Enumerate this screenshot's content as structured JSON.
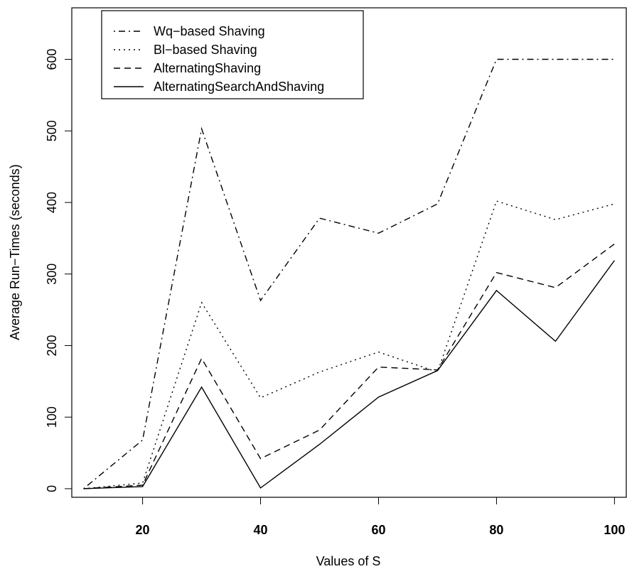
{
  "chart_data": {
    "type": "line",
    "title": "",
    "xlabel": "Values of S",
    "ylabel": "Average Run−Times (seconds)",
    "xlim": [
      8,
      102
    ],
    "ylim": [
      -12,
      672
    ],
    "x_ticks": [
      20,
      40,
      60,
      80,
      100
    ],
    "x_tick_labels": [
      "20",
      "40",
      "60",
      "80",
      "100"
    ],
    "y_ticks": [
      0,
      100,
      200,
      300,
      400,
      500,
      600
    ],
    "y_tick_labels": [
      "0",
      "100",
      "200",
      "300",
      "400",
      "500",
      "600"
    ],
    "grid": false,
    "legend_position": "top-left",
    "x": [
      10,
      20,
      30,
      40,
      50,
      60,
      70,
      80,
      90,
      100
    ],
    "series": [
      {
        "name": "Wq−based Shaving",
        "line_style": "dotdash",
        "color": "#000000",
        "values": [
          0,
          68,
          503,
          263,
          378,
          357,
          398,
          600,
          600,
          600
        ]
      },
      {
        "name": "Bl−based Shaving",
        "line_style": "dotted",
        "color": "#000000",
        "values": [
          0,
          8,
          260,
          127,
          163,
          191,
          163,
          402,
          376,
          398
        ]
      },
      {
        "name": "AlternatingShaving",
        "line_style": "dashed",
        "color": "#000000",
        "values": [
          0,
          5,
          182,
          42,
          82,
          170,
          166,
          302,
          281,
          342
        ]
      },
      {
        "name": "AlternatingSearchAndShaving",
        "line_style": "solid",
        "color": "#000000",
        "values": [
          0,
          3,
          142,
          1,
          62,
          128,
          165,
          277,
          206,
          319
        ]
      }
    ]
  }
}
